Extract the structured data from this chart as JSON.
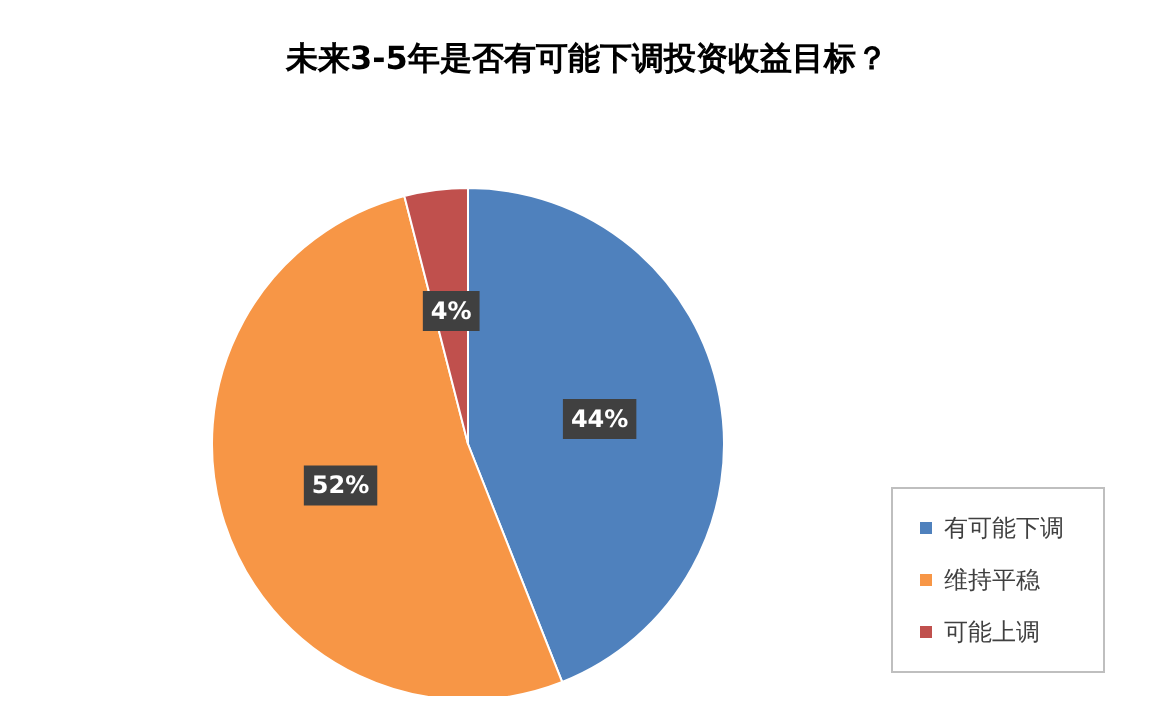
{
  "chart_data": {
    "type": "pie",
    "title": "未来3-5年是否有可能下调投资收益目标？",
    "categories": [
      "有可能下调",
      "维持平稳",
      "可能上调"
    ],
    "values": [
      44,
      52,
      4
    ],
    "value_labels": [
      "44%",
      "52%",
      "4%"
    ],
    "colors": [
      "#4f81bd",
      "#f79646",
      "#c0504d"
    ],
    "legend": "bottom right"
  }
}
